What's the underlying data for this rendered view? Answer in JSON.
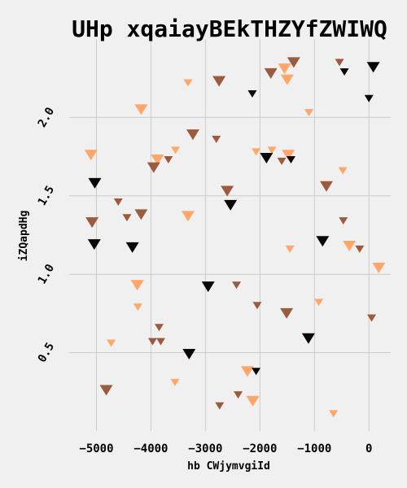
{
  "chart_data": {
    "type": "scatter",
    "marker": "triangle-down",
    "title": "UHp xqaiayBEkTHZYfZWIWQ",
    "xlabel": "hb CWjymvgiId",
    "ylabel": "iZQapdHg",
    "xlim": [
      -5500,
      400
    ],
    "ylim": [
      0.0,
      2.5
    ],
    "xticks": [
      -5000,
      -4000,
      -3000,
      -2000,
      -1000,
      0
    ],
    "xtick_labels": [
      "−5000",
      "−4000",
      "−3000",
      "−2000",
      "−1000",
      "0"
    ],
    "yticks": [
      0.5,
      1.0,
      1.5,
      2.0
    ],
    "ytick_labels": [
      "0.5",
      "1.0",
      "1.5",
      "2.0"
    ],
    "grid": true,
    "color_scale": [
      "#0b0705",
      "#9a5b3e",
      "#fea66b"
    ],
    "points": [
      {
        "x": -540,
        "y": 2.35,
        "c": 0.5,
        "s": "s"
      },
      {
        "x": 80,
        "y": 2.32,
        "c": 0.0,
        "s": "l"
      },
      {
        "x": -1380,
        "y": 2.35,
        "c": 0.5,
        "s": "l"
      },
      {
        "x": -1550,
        "y": 2.31,
        "c": 1.0,
        "s": "l"
      },
      {
        "x": -1800,
        "y": 2.28,
        "c": 0.5,
        "s": "l"
      },
      {
        "x": -1500,
        "y": 2.24,
        "c": 1.0,
        "s": "l"
      },
      {
        "x": -2750,
        "y": 2.23,
        "c": 0.5,
        "s": "l"
      },
      {
        "x": -3320,
        "y": 2.22,
        "c": 1.0,
        "s": "s"
      },
      {
        "x": -450,
        "y": 2.29,
        "c": 0.0,
        "s": "s"
      },
      {
        "x": -2140,
        "y": 2.15,
        "c": 0.0,
        "s": "s"
      },
      {
        "x": 0,
        "y": 2.12,
        "c": 0.0,
        "s": "s"
      },
      {
        "x": -4180,
        "y": 2.05,
        "c": 1.0,
        "s": "l"
      },
      {
        "x": -1100,
        "y": 2.03,
        "c": 1.0,
        "s": "s"
      },
      {
        "x": -3230,
        "y": 1.89,
        "c": 0.5,
        "s": "l"
      },
      {
        "x": -2800,
        "y": 1.86,
        "c": 0.5,
        "s": "s"
      },
      {
        "x": -5100,
        "y": 1.76,
        "c": 1.0,
        "s": "l"
      },
      {
        "x": -3550,
        "y": 1.79,
        "c": 1.0,
        "s": "s"
      },
      {
        "x": -3680,
        "y": 1.73,
        "c": 0.5,
        "s": "s"
      },
      {
        "x": -3880,
        "y": 1.73,
        "c": 1.0,
        "s": "l"
      },
      {
        "x": -3950,
        "y": 1.68,
        "c": 0.5,
        "s": "l"
      },
      {
        "x": -2070,
        "y": 1.78,
        "c": 1.0,
        "s": "s"
      },
      {
        "x": -1780,
        "y": 1.79,
        "c": 1.0,
        "s": "s"
      },
      {
        "x": -1880,
        "y": 1.74,
        "c": 0.0,
        "s": "l"
      },
      {
        "x": -1600,
        "y": 1.72,
        "c": 0.5,
        "s": "s"
      },
      {
        "x": -1480,
        "y": 1.76,
        "c": 1.0,
        "s": "l"
      },
      {
        "x": -1430,
        "y": 1.73,
        "c": 0.0,
        "s": "s"
      },
      {
        "x": -480,
        "y": 1.66,
        "c": 1.0,
        "s": "s"
      },
      {
        "x": -780,
        "y": 1.56,
        "c": 0.5,
        "s": "l"
      },
      {
        "x": -5030,
        "y": 1.58,
        "c": 0.0,
        "s": "l"
      },
      {
        "x": -2600,
        "y": 1.53,
        "c": 0.5,
        "s": "l"
      },
      {
        "x": -4600,
        "y": 1.46,
        "c": 0.5,
        "s": "s"
      },
      {
        "x": -2540,
        "y": 1.44,
        "c": 0.0,
        "s": "l"
      },
      {
        "x": -4180,
        "y": 1.38,
        "c": 0.5,
        "s": "l"
      },
      {
        "x": -4440,
        "y": 1.36,
        "c": 0.5,
        "s": "s"
      },
      {
        "x": -3320,
        "y": 1.37,
        "c": 1.0,
        "s": "l"
      },
      {
        "x": -5080,
        "y": 1.33,
        "c": 0.5,
        "s": "l"
      },
      {
        "x": -470,
        "y": 1.34,
        "c": 0.5,
        "s": "s"
      },
      {
        "x": -5040,
        "y": 1.19,
        "c": 0.0,
        "s": "l"
      },
      {
        "x": -4340,
        "y": 1.17,
        "c": 0.0,
        "s": "l"
      },
      {
        "x": -850,
        "y": 1.21,
        "c": 0.0,
        "s": "l"
      },
      {
        "x": -360,
        "y": 1.18,
        "c": 1.0,
        "s": "l"
      },
      {
        "x": -170,
        "y": 1.16,
        "c": 0.5,
        "s": "s"
      },
      {
        "x": -1450,
        "y": 1.16,
        "c": 1.0,
        "s": "s"
      },
      {
        "x": 180,
        "y": 1.04,
        "c": 1.0,
        "s": "l"
      },
      {
        "x": -4250,
        "y": 0.93,
        "c": 1.0,
        "s": "l"
      },
      {
        "x": -2950,
        "y": 0.92,
        "c": 0.0,
        "s": "l"
      },
      {
        "x": -2430,
        "y": 0.93,
        "c": 0.5,
        "s": "s"
      },
      {
        "x": -4240,
        "y": 0.79,
        "c": 1.0,
        "s": "s"
      },
      {
        "x": -2050,
        "y": 0.8,
        "c": 0.5,
        "s": "s"
      },
      {
        "x": -1510,
        "y": 0.75,
        "c": 0.5,
        "s": "l"
      },
      {
        "x": -920,
        "y": 0.82,
        "c": 1.0,
        "s": "s"
      },
      {
        "x": 50,
        "y": 0.72,
        "c": 0.5,
        "s": "s"
      },
      {
        "x": -3850,
        "y": 0.66,
        "c": 0.5,
        "s": "s"
      },
      {
        "x": -3970,
        "y": 0.57,
        "c": 0.5,
        "s": "s"
      },
      {
        "x": -3820,
        "y": 0.57,
        "c": 0.5,
        "s": "s"
      },
      {
        "x": -4730,
        "y": 0.56,
        "c": 1.0,
        "s": "s"
      },
      {
        "x": -1110,
        "y": 0.59,
        "c": 0.0,
        "s": "l"
      },
      {
        "x": -3300,
        "y": 0.49,
        "c": 0.0,
        "s": "l"
      },
      {
        "x": -2230,
        "y": 0.38,
        "c": 1.0,
        "s": "l"
      },
      {
        "x": -2070,
        "y": 0.38,
        "c": 0.0,
        "s": "s"
      },
      {
        "x": -3560,
        "y": 0.31,
        "c": 1.0,
        "s": "s"
      },
      {
        "x": -4820,
        "y": 0.26,
        "c": 0.5,
        "s": "l"
      },
      {
        "x": -2400,
        "y": 0.23,
        "c": 0.5,
        "s": "s"
      },
      {
        "x": -2130,
        "y": 0.19,
        "c": 1.0,
        "s": "l"
      },
      {
        "x": -2740,
        "y": 0.16,
        "c": 0.5,
        "s": "s"
      },
      {
        "x": -650,
        "y": 0.11,
        "c": 1.0,
        "s": "s"
      }
    ]
  }
}
